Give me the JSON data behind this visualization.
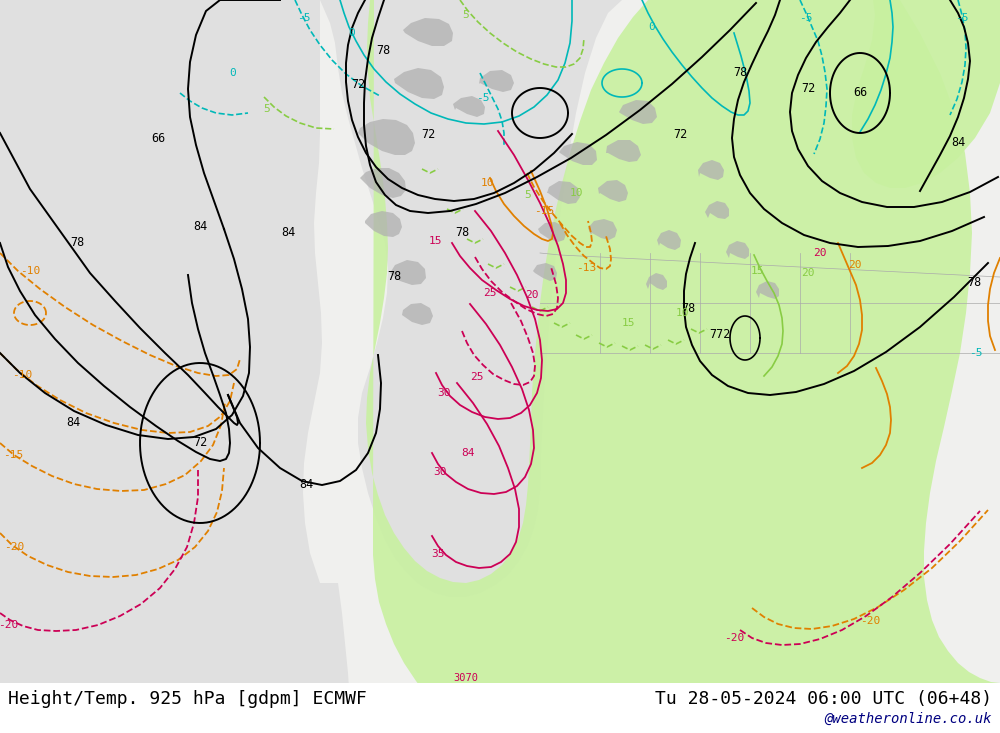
{
  "title_left": "Height/Temp. 925 hPa [gdpm] ECMWF",
  "title_right": "Tu 28-05-2024 06:00 UTC (06+48)",
  "watermark": "@weatheronline.co.uk",
  "bg_color": "#e0e0e0",
  "land_color": "#f0f0ee",
  "green_color": "#c8f0a0",
  "gray_color": "#b0b0b0",
  "title_fontsize": 13,
  "watermark_color": "#000080",
  "watermark_fontsize": 10,
  "fig_width": 10.0,
  "fig_height": 7.33,
  "dpi": 100,
  "black": "#000000",
  "cyan": "#00b8b8",
  "orange": "#e08000",
  "green_line": "#88cc44",
  "red": "#cc0055",
  "gray_line": "#888888"
}
